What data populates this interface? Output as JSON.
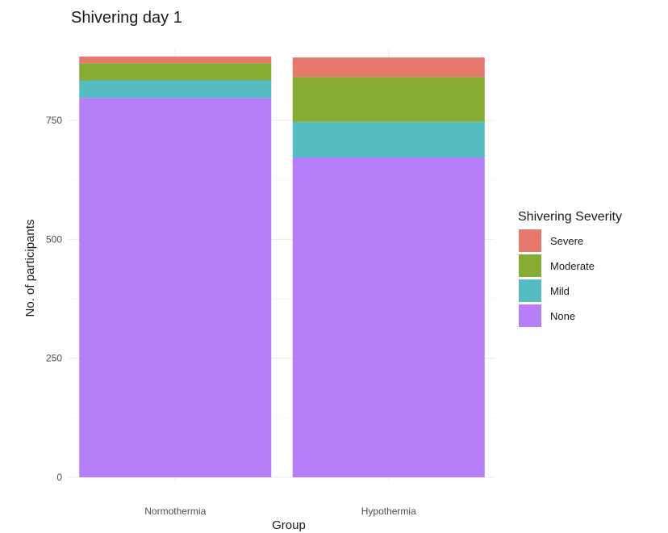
{
  "chart_data": {
    "type": "bar",
    "stacked": true,
    "title": "Shivering day 1",
    "xlabel": "Group",
    "ylabel": "No. of participants",
    "categories": [
      "Normothermia",
      "Hypothermia"
    ],
    "series": [
      {
        "name": "None",
        "values": [
          797,
          672
        ],
        "color": "#B77EFA"
      },
      {
        "name": "Mild",
        "values": [
          37,
          75
        ],
        "color": "#55BCC2"
      },
      {
        "name": "Moderate",
        "values": [
          36,
          94
        ],
        "color": "#86AC31"
      },
      {
        "name": "Severe",
        "values": [
          14,
          41
        ],
        "color": "#E7786E"
      }
    ],
    "ylim": [
      0,
      900
    ],
    "yticks": [
      0,
      250,
      500,
      750
    ],
    "grid": true,
    "legend": {
      "title": "Shivering Severity",
      "placement": "right",
      "entries": [
        "Severe",
        "Moderate",
        "Mild",
        "None"
      ]
    }
  }
}
